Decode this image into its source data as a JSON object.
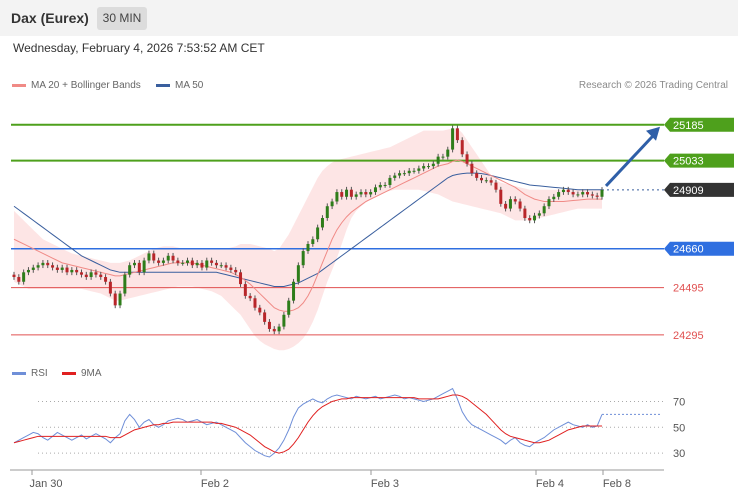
{
  "header": {
    "title": "Dax (Eurex)",
    "timeframe": "30 MIN"
  },
  "datetime": "Wednesday, February 4, 2026 7:53:52 AM CET",
  "legend": {
    "ma20": {
      "label": "MA 20 + Bollinger Bands",
      "color": "#f08a86"
    },
    "ma50": {
      "label": "MA 50",
      "color": "#3a5f9e"
    }
  },
  "research": "Research © 2026 Trading Central",
  "rsi_legend": {
    "rsi": {
      "label": "RSI",
      "color": "#6f8fd8"
    },
    "ma9": {
      "label": "9MA",
      "color": "#e02020"
    }
  },
  "chart_data": [
    {
      "type": "candlestick",
      "title": "",
      "ylim": [
        24180,
        25290
      ],
      "x_labels": [
        "Jan 30",
        "Feb 2",
        "Feb 3",
        "Feb 4",
        "Feb 8"
      ],
      "levels": [
        {
          "value": 25185,
          "label": "25185",
          "color": "#4ea01c",
          "style": "resistance"
        },
        {
          "value": 25033,
          "label": "25033",
          "color": "#4ea01c",
          "style": "resistance"
        },
        {
          "value": 24909,
          "label": "24909",
          "color": "#333333",
          "style": "last"
        },
        {
          "value": 24660,
          "label": "24660",
          "color": "#2f6fe0",
          "style": "pivot"
        },
        {
          "value": 24495,
          "label": "24495",
          "color": "#e05050",
          "style": "support"
        },
        {
          "value": 24295,
          "label": "24295",
          "color": "#e05050",
          "style": "support"
        }
      ],
      "close": [
        24540,
        24520,
        24560,
        24570,
        24580,
        24590,
        24600,
        24590,
        24580,
        24570,
        24580,
        24560,
        24570,
        24560,
        24550,
        24540,
        24560,
        24550,
        24540,
        24520,
        24470,
        24420,
        24470,
        24550,
        24590,
        24600,
        24560,
        24610,
        24640,
        24610,
        24600,
        24610,
        24630,
        24610,
        24600,
        24600,
        24610,
        24590,
        24600,
        24580,
        24610,
        24600,
        24590,
        24590,
        24580,
        24570,
        24560,
        24510,
        24460,
        24450,
        24410,
        24390,
        24350,
        24320,
        24310,
        24330,
        24380,
        24440,
        24520,
        24590,
        24650,
        24680,
        24700,
        24750,
        24790,
        24840,
        24860,
        24900,
        24880,
        24910,
        24880,
        24890,
        24900,
        24890,
        24900,
        24920,
        24930,
        24930,
        24960,
        24970,
        24980,
        24980,
        24990,
        24990,
        25000,
        25010,
        25010,
        25020,
        25050,
        25050,
        25080,
        25170,
        25120,
        25060,
        25020,
        24980,
        24960,
        24950,
        24950,
        24940,
        24910,
        24850,
        24830,
        24870,
        24860,
        24830,
        24790,
        24780,
        24800,
        24810,
        24840,
        24870,
        24880,
        24900,
        24910,
        24900,
        24890,
        24890,
        24900,
        24890,
        24885,
        24880,
        24909
      ],
      "bollinger_upper": [
        24820,
        24800,
        24780,
        24760,
        24740,
        24720,
        24700,
        24690,
        24680,
        24670,
        24660,
        24650,
        24640,
        24635,
        24630,
        24625,
        24620,
        24615,
        24610,
        24605,
        24600,
        24600,
        24600,
        24605,
        24610,
        24620,
        24630,
        24640,
        24650,
        24660,
        24665,
        24670,
        24670,
        24670,
        24665,
        24660,
        24660,
        24660,
        24660,
        24660,
        24660,
        24660,
        24660,
        24660,
        24660,
        24665,
        24670,
        24680,
        24680,
        24680,
        24675,
        24670,
        24665,
        24660,
        24650,
        24660,
        24690,
        24720,
        24760,
        24800,
        24840,
        24880,
        24920,
        24960,
        24990,
        25010,
        25025,
        25035,
        25040,
        25045,
        25050,
        25055,
        25060,
        25065,
        25070,
        25075,
        25080,
        25085,
        25090,
        25100,
        25110,
        25120,
        25130,
        25140,
        25150,
        25160,
        25160,
        25160,
        25160,
        25160,
        25165,
        25170,
        25170,
        25150,
        25120,
        25090,
        25060,
        25030,
        25000,
        24970,
        24950,
        24940,
        24935,
        24930,
        24925,
        24920,
        24915,
        24910,
        24910,
        24910,
        24910,
        24910,
        24910,
        24910,
        24910,
        24910,
        24910,
        24910,
        24910,
        24910,
        24910,
        24910,
        24910
      ],
      "bollinger_lower": [
        24520,
        24510,
        24500,
        24490,
        24490,
        24490,
        24490,
        24490,
        24490,
        24490,
        24490,
        24490,
        24490,
        24490,
        24490,
        24485,
        24480,
        24475,
        24470,
        24460,
        24450,
        24440,
        24440,
        24445,
        24450,
        24455,
        24460,
        24465,
        24470,
        24475,
        24480,
        24485,
        24490,
        24495,
        24500,
        24500,
        24500,
        24500,
        24495,
        24490,
        24485,
        24480,
        24470,
        24460,
        24440,
        24420,
        24400,
        24380,
        24350,
        24320,
        24290,
        24270,
        24255,
        24245,
        24235,
        24230,
        24230,
        24235,
        24245,
        24260,
        24280,
        24310,
        24350,
        24400,
        24460,
        24520,
        24570,
        24620,
        24680,
        24740,
        24790,
        24820,
        24840,
        24855,
        24870,
        24880,
        24890,
        24900,
        24905,
        24910,
        24910,
        24910,
        24910,
        24910,
        24910,
        24905,
        24900,
        24895,
        24890,
        24880,
        24870,
        24860,
        24855,
        24850,
        24845,
        24840,
        24835,
        24830,
        24825,
        24820,
        24815,
        24810,
        24800,
        24790,
        24780,
        24780,
        24780,
        24780,
        24785,
        24790,
        24795,
        24800,
        24805,
        24810,
        24815,
        24820,
        24825,
        24830,
        24830,
        24830,
        24830,
        24830,
        24830
      ],
      "ma20": [
        24700,
        24690,
        24680,
        24670,
        24660,
        24650,
        24640,
        24630,
        24620,
        24610,
        24600,
        24595,
        24590,
        24585,
        24580,
        24575,
        24570,
        24565,
        24560,
        24555,
        24550,
        24545,
        24545,
        24550,
        24555,
        24560,
        24565,
        24570,
        24575,
        24580,
        24585,
        24590,
        24595,
        24600,
        24600,
        24600,
        24600,
        24600,
        24595,
        24590,
        24585,
        24580,
        24575,
        24570,
        24565,
        24560,
        24550,
        24540,
        24525,
        24510,
        24490,
        24470,
        24450,
        24430,
        24410,
        24400,
        24395,
        24395,
        24400,
        24410,
        24430,
        24460,
        24500,
        24550,
        24600,
        24650,
        24700,
        24740,
        24770,
        24795,
        24815,
        24830,
        24845,
        24860,
        24870,
        24880,
        24890,
        24900,
        24910,
        24920,
        24930,
        24940,
        24950,
        24960,
        24970,
        24980,
        24990,
        25000,
        25010,
        25015,
        25020,
        25030,
        25035,
        25030,
        25020,
        25010,
        25000,
        24990,
        24980,
        24970,
        24960,
        24950,
        24940,
        24930,
        24920,
        24905,
        24890,
        24880,
        24870,
        24865,
        24860,
        24860,
        24860,
        24860,
        24860,
        24862,
        24864,
        24866,
        24868,
        24870,
        24870,
        24870,
        24870
      ],
      "ma50": [
        24840,
        24825,
        24810,
        24795,
        24780,
        24765,
        24750,
        24735,
        24720,
        24705,
        24690,
        24675,
        24660,
        24645,
        24630,
        24620,
        24610,
        24600,
        24590,
        24580,
        24570,
        24565,
        24560,
        24560,
        24560,
        24560,
        24560,
        24560,
        24560,
        24560,
        24560,
        24560,
        24560,
        24560,
        24560,
        24560,
        24560,
        24560,
        24560,
        24560,
        24560,
        24560,
        24560,
        24555,
        24550,
        24545,
        24540,
        24535,
        24530,
        24525,
        24520,
        24515,
        24510,
        24505,
        24500,
        24500,
        24500,
        24505,
        24510,
        24515,
        24525,
        24535,
        24545,
        24555,
        24570,
        24585,
        24600,
        24615,
        24630,
        24645,
        24660,
        24675,
        24690,
        24705,
        24720,
        24735,
        24750,
        24765,
        24780,
        24795,
        24810,
        24825,
        24840,
        24855,
        24870,
        24885,
        24900,
        24915,
        24930,
        24945,
        24960,
        24970,
        24975,
        24978,
        24980,
        24980,
        24980,
        24978,
        24975,
        24970,
        24965,
        24960,
        24955,
        24950,
        24945,
        24940,
        24935,
        24930,
        24928,
        24926,
        24924,
        24922,
        24920,
        24918,
        24916,
        24914,
        24912,
        24910,
        24910,
        24910,
        24910,
        24910,
        24910
      ]
    },
    {
      "type": "line",
      "title": "",
      "ylim": [
        20,
        82
      ],
      "levels": [
        70,
        50,
        30
      ],
      "series": [
        {
          "name": "RSI",
          "color": "#6f8fd8",
          "values": [
            38,
            40,
            42,
            44,
            46,
            45,
            42,
            40,
            43,
            46,
            44,
            42,
            40,
            42,
            44,
            41,
            43,
            45,
            43,
            41,
            38,
            42,
            45,
            55,
            60,
            56,
            50,
            54,
            56,
            52,
            50,
            52,
            55,
            56,
            57,
            56,
            54,
            55,
            56,
            54,
            52,
            53,
            54,
            52,
            50,
            48,
            46,
            42,
            38,
            35,
            32,
            30,
            28,
            27,
            30,
            34,
            40,
            48,
            58,
            65,
            68,
            70,
            72,
            70,
            69,
            72,
            74,
            75,
            74,
            73,
            72,
            74,
            73,
            72,
            73,
            74,
            72,
            73,
            74,
            75,
            74,
            72,
            73,
            72,
            71,
            70,
            71,
            72,
            74,
            76,
            78,
            80,
            72,
            62,
            56,
            52,
            50,
            48,
            46,
            44,
            42,
            40,
            37,
            40,
            42,
            38,
            36,
            35,
            38,
            40,
            42,
            45,
            48,
            50,
            52,
            54,
            52,
            51,
            50,
            52,
            50,
            51,
            60
          ]
        },
        {
          "name": "9MA",
          "color": "#e02020",
          "values": [
            38,
            39,
            40,
            41,
            42,
            43,
            43,
            43,
            43,
            43,
            43,
            43,
            43,
            43,
            43,
            43,
            43,
            43,
            43,
            43,
            42,
            42,
            42,
            44,
            46,
            48,
            49,
            50,
            51,
            52,
            52,
            53,
            53,
            54,
            54,
            54,
            54,
            54,
            54,
            54,
            54,
            54,
            53,
            53,
            52,
            51,
            50,
            48,
            46,
            44,
            41,
            38,
            35,
            33,
            31,
            30,
            31,
            33,
            37,
            42,
            48,
            54,
            59,
            63,
            66,
            68,
            70,
            71,
            72,
            72,
            73,
            73,
            73,
            73,
            73,
            73,
            73,
            73,
            73,
            73,
            73,
            73,
            73,
            73,
            72,
            72,
            72,
            72,
            72,
            73,
            74,
            75,
            75,
            74,
            72,
            69,
            66,
            63,
            60,
            56,
            52,
            48,
            45,
            43,
            42,
            41,
            40,
            39,
            38,
            38,
            39,
            40,
            42,
            44,
            46,
            48,
            49,
            50,
            51,
            51,
            51,
            51,
            51
          ]
        }
      ]
    }
  ]
}
